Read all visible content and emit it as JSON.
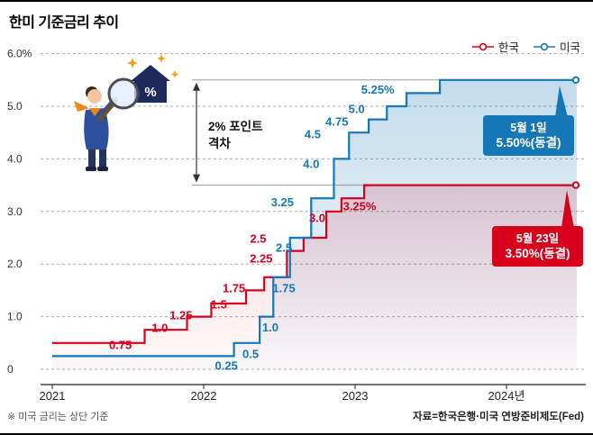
{
  "page": {
    "title": "한미 기준금리 추이",
    "footnote": "※ 미국 금리는 상단 기준",
    "source": "자료=한국은행·미국 연방준비제도(Fed)"
  },
  "illustration": {
    "symbol": "%"
  },
  "chart_data": {
    "type": "line",
    "variant": "step",
    "title": "한미 기준금리 추이",
    "unit": "%",
    "grid": "dashed-horizontal",
    "legend_position": "top-right",
    "x_range": [
      2021,
      2024.46
    ],
    "ylim": [
      0,
      6
    ],
    "y_ticks": [
      0,
      1,
      2,
      3,
      4,
      5,
      6
    ],
    "y_tick_labels": [
      "0",
      "1.0",
      "2.0",
      "3.0",
      "4.0",
      "5.0",
      "6.0%"
    ],
    "x_ticks": [
      2021,
      2022,
      2023,
      2024
    ],
    "x_tick_labels": [
      "2021",
      "2022",
      "2023",
      "2024년"
    ],
    "series": [
      {
        "name": "한국",
        "color": "#d6001c",
        "steps": [
          {
            "x": 2021.0,
            "rate": 0.5
          },
          {
            "x": 2021.61,
            "rate": 0.75
          },
          {
            "x": 2021.89,
            "rate": 1.0
          },
          {
            "x": 2022.05,
            "rate": 1.25
          },
          {
            "x": 2022.28,
            "rate": 1.5
          },
          {
            "x": 2022.4,
            "rate": 1.75
          },
          {
            "x": 2022.55,
            "rate": 2.25
          },
          {
            "x": 2022.66,
            "rate": 2.5
          },
          {
            "x": 2022.81,
            "rate": 3.0
          },
          {
            "x": 2022.91,
            "rate": 3.25
          },
          {
            "x": 2023.06,
            "rate": 3.5
          }
        ],
        "point_labels": [
          {
            "text": "0.75",
            "x": 2021.45,
            "y": 0.46
          },
          {
            "text": "1.0",
            "x": 2021.71,
            "y": 0.79
          },
          {
            "text": "1.25",
            "x": 2021.85,
            "y": 1.03
          },
          {
            "text": "1.5",
            "x": 2022.1,
            "y": 1.23
          },
          {
            "text": "1.75",
            "x": 2022.2,
            "y": 1.54
          },
          {
            "text": "2.25",
            "x": 2022.38,
            "y": 2.11
          },
          {
            "text": "2.5",
            "x": 2022.36,
            "y": 2.48
          },
          {
            "text": "3.0",
            "x": 2022.75,
            "y": 2.88
          },
          {
            "text": "3.25%",
            "x": 2023.03,
            "y": 3.1
          }
        ],
        "callout": {
          "line1": "5월 23일",
          "line2": "3.50%(동결)"
        }
      },
      {
        "name": "미국",
        "color": "#1577b5",
        "steps": [
          {
            "x": 2021.0,
            "rate": 0.25
          },
          {
            "x": 2022.2,
            "rate": 0.5
          },
          {
            "x": 2022.37,
            "rate": 1.0
          },
          {
            "x": 2022.46,
            "rate": 1.75
          },
          {
            "x": 2022.57,
            "rate": 2.5
          },
          {
            "x": 2022.71,
            "rate": 3.25
          },
          {
            "x": 2022.86,
            "rate": 4.0
          },
          {
            "x": 2022.96,
            "rate": 4.5
          },
          {
            "x": 2023.09,
            "rate": 4.75
          },
          {
            "x": 2023.21,
            "rate": 5.0
          },
          {
            "x": 2023.34,
            "rate": 5.25
          },
          {
            "x": 2023.56,
            "rate": 5.5
          }
        ],
        "point_labels": [
          {
            "text": "0.25",
            "x": 2022.15,
            "y": 0.07
          },
          {
            "text": "0.5",
            "x": 2022.31,
            "y": 0.29
          },
          {
            "text": "1.0",
            "x": 2022.44,
            "y": 0.8
          },
          {
            "text": "1.75",
            "x": 2022.53,
            "y": 1.54
          },
          {
            "text": "2.5",
            "x": 2022.53,
            "y": 2.31
          },
          {
            "text": "3.25",
            "x": 2022.52,
            "y": 3.18
          },
          {
            "text": "4.0",
            "x": 2022.71,
            "y": 3.9
          },
          {
            "text": "4.5",
            "x": 2022.72,
            "y": 4.47
          },
          {
            "text": "4.75",
            "x": 2022.88,
            "y": 4.71
          },
          {
            "text": "5.0",
            "x": 2023.01,
            "y": 4.95
          },
          {
            "text": "5.25%",
            "x": 2023.15,
            "y": 5.32
          }
        ],
        "callout": {
          "line1": "5월 1일",
          "line2": "5.50%(동결)"
        }
      }
    ],
    "gap_annotation": {
      "text": [
        "2% 포인트",
        "격차"
      ],
      "from_rate": 3.5,
      "to_rate": 5.5
    }
  }
}
